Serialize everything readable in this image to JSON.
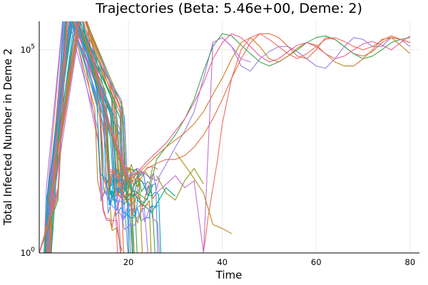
{
  "chart_data": {
    "type": "line",
    "title": "Trajectories (Beta: 5.46e+00, Deme: 2)",
    "xlabel": "Time",
    "ylabel": "Total Infected Number in Deme 2",
    "xlim": [
      1,
      82
    ],
    "ylim": [
      1,
      500000
    ],
    "yscale": "log10",
    "grid": true,
    "legend": "none",
    "x_ticks": [
      {
        "value": 20,
        "label": "20"
      },
      {
        "value": 40,
        "label": "40"
      },
      {
        "value": 60,
        "label": "60"
      },
      {
        "value": 80,
        "label": "80"
      }
    ],
    "y_ticks": [
      {
        "value": 1,
        "base": "10",
        "exp": "0"
      },
      {
        "value": 100000,
        "base": "10",
        "exp": "5"
      }
    ],
    "colors": [
      "#009AFA",
      "#E36F47",
      "#3EA44E",
      "#C271D2",
      "#AC8E18",
      "#00AAAE",
      "#ED5E93",
      "#C68225",
      "#00A98D",
      "#8E971E",
      "#00A9CD",
      "#9B7FE9",
      "#618CF7",
      "#F16C5D"
    ],
    "long_series": [
      {
        "color": "#9B7FE9",
        "x": [
          1,
          5,
          7,
          9,
          12,
          16,
          20,
          22,
          24,
          26,
          28,
          30,
          32,
          34,
          36,
          38,
          40,
          42,
          44,
          46,
          48,
          50,
          52,
          54,
          56,
          58,
          60,
          62,
          64,
          66,
          68,
          70,
          72,
          74,
          76,
          78,
          80
        ],
        "y": [
          1,
          30,
          600000,
          600000,
          90000,
          1500,
          80,
          120,
          80,
          60,
          150,
          400,
          1000,
          3000,
          20000,
          150000,
          200000,
          120000,
          40000,
          30000,
          60000,
          90000,
          120000,
          120000,
          90000,
          60000,
          40000,
          35000,
          60000,
          120000,
          200000,
          180000,
          120000,
          120000,
          200000,
          180000,
          120000
        ]
      },
      {
        "color": "#E36F47",
        "x": [
          1,
          5,
          7,
          9,
          12,
          16,
          20,
          22,
          24,
          26,
          28,
          30,
          32,
          34,
          36,
          38,
          40,
          42,
          44,
          46,
          48,
          50,
          52,
          54,
          56,
          58,
          60,
          62,
          64,
          66,
          68,
          70,
          72,
          74,
          76,
          78,
          80
        ],
        "y": [
          1,
          40,
          600000,
          600000,
          80000,
          1200,
          50,
          70,
          120,
          160,
          200,
          200,
          250,
          400,
          800,
          2000,
          6000,
          20000,
          60000,
          150000,
          250000,
          250000,
          200000,
          120000,
          70000,
          60000,
          100000,
          200000,
          180000,
          120000,
          80000,
          70000,
          90000,
          150000,
          200000,
          180000,
          150000
        ]
      },
      {
        "color": "#3EA44E",
        "x": [
          1,
          5,
          7,
          9,
          12,
          16,
          20,
          22,
          24,
          26,
          28,
          30,
          32,
          34,
          36,
          38,
          40,
          42,
          44,
          46,
          48,
          50,
          52,
          54,
          56,
          58,
          60,
          62,
          64,
          66,
          68,
          70,
          72,
          74,
          76,
          78,
          80
        ],
        "y": [
          1,
          20,
          600000,
          600000,
          70000,
          1000,
          40,
          30,
          20,
          200,
          400,
          800,
          2000,
          6000,
          30000,
          120000,
          250000,
          220000,
          130000,
          80000,
          50000,
          40000,
          50000,
          70000,
          100000,
          150000,
          200000,
          220000,
          180000,
          120000,
          80000,
          60000,
          70000,
          100000,
          150000,
          180000,
          200000
        ]
      },
      {
        "color": "#C68225",
        "x": [
          1,
          5,
          7,
          9,
          12,
          16,
          20,
          22,
          24,
          26,
          28,
          30,
          32,
          34,
          36,
          38,
          40,
          42,
          44,
          46,
          48,
          50,
          52,
          54,
          56,
          58,
          60,
          62,
          64,
          66,
          68,
          70,
          72,
          74,
          76,
          78,
          80
        ],
        "y": [
          1,
          25,
          600000,
          600000,
          85000,
          1300,
          60,
          90,
          150,
          250,
          400,
          600,
          900,
          1500,
          3000,
          8000,
          20000,
          60000,
          150000,
          200000,
          120000,
          60000,
          50000,
          70000,
          110000,
          150000,
          130000,
          80000,
          50000,
          40000,
          40000,
          60000,
          100000,
          180000,
          200000,
          130000,
          80000
        ]
      },
      {
        "color": "#ED5E93",
        "x": [
          1,
          5,
          7,
          9,
          12,
          16,
          20,
          22,
          24,
          26,
          28,
          30,
          32,
          34,
          36,
          38,
          40,
          42,
          44,
          46,
          48,
          50,
          52,
          54,
          56,
          58,
          60,
          62,
          64,
          66,
          68,
          70,
          72,
          74,
          76,
          78,
          80
        ],
        "y": [
          1,
          35,
          600000,
          600000,
          90000,
          1400,
          70,
          100,
          180,
          300,
          500,
          1000,
          2000,
          5000,
          15000,
          60000,
          150000,
          250000,
          200000,
          120000,
          70000,
          50000,
          60000,
          90000,
          130000,
          150000,
          120000,
          80000,
          60000,
          70000,
          100000,
          140000,
          160000,
          130000,
          100000,
          150000,
          220000
        ]
      },
      {
        "color": "#F16C5D",
        "x": [
          36,
          37,
          38,
          39,
          40,
          42,
          44,
          46,
          48,
          50,
          52,
          54,
          56,
          58,
          60,
          62,
          64,
          66,
          68,
          70,
          72,
          74,
          76,
          78,
          80
        ],
        "y": [
          1,
          8,
          40,
          200,
          1500,
          20000,
          100000,
          200000,
          250000,
          180000,
          120000,
          80000,
          60000,
          80000,
          120000,
          180000,
          200000,
          160000,
          120000,
          100000,
          120000,
          170000,
          220000,
          180000,
          150000
        ]
      },
      {
        "color": "#C271D2",
        "x": [
          26,
          30,
          32,
          34,
          36,
          38,
          40,
          42,
          44,
          46
        ],
        "y": [
          30,
          80,
          40,
          60,
          1,
          150000,
          200000,
          120000,
          60000,
          50000
        ]
      },
      {
        "color": "#AC8E18",
        "x": [
          30,
          33,
          36,
          38,
          40,
          42
        ],
        "y": [
          300,
          100,
          30,
          5,
          4,
          3
        ]
      },
      {
        "color": "#8E971E",
        "x": [
          26,
          28,
          30,
          32,
          34,
          36
        ],
        "y": [
          80,
          30,
          20,
          60,
          120,
          50
        ]
      },
      {
        "color": "#00A98D",
        "x": [
          22,
          25,
          28,
          30
        ],
        "y": [
          20,
          10,
          40,
          25
        ]
      }
    ],
    "burst_series_count": 44,
    "burst_peak_range": [
      6,
      10
    ],
    "burst_peak_value": 600000,
    "burst_end_range": [
      17,
      27
    ],
    "burst_end_value_range": [
      2,
      80
    ]
  }
}
